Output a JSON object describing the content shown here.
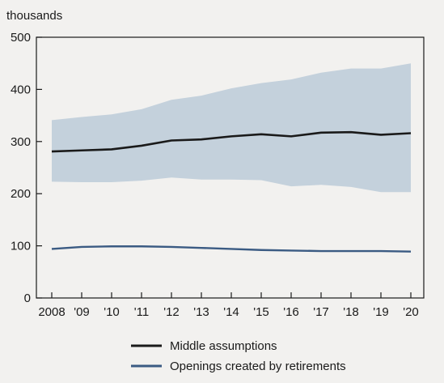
{
  "chart_data": {
    "type": "line",
    "unit_label": "thousands",
    "categories": [
      "2008",
      "'09",
      "'10",
      "'11",
      "'12",
      "'13",
      "'14",
      "'15",
      "'16",
      "'17",
      "'18",
      "'19",
      "'20"
    ],
    "ylim": [
      0,
      500
    ],
    "yticks": [
      "0",
      "100",
      "200",
      "300",
      "400",
      "500"
    ],
    "band": {
      "upper": [
        341,
        347,
        352,
        362,
        380,
        388,
        402,
        412,
        419,
        432,
        440,
        440,
        450
      ],
      "lower": [
        223,
        222,
        222,
        225,
        231,
        227,
        227,
        226,
        214,
        217,
        213,
        203,
        203
      ]
    },
    "series": [
      {
        "name": "Middle assumptions",
        "values": [
          281,
          283,
          285,
          292,
          302,
          304,
          310,
          314,
          310,
          317,
          318,
          313,
          316
        ]
      },
      {
        "name": "Openings created by retirements",
        "values": [
          94,
          98,
          99,
          99,
          98,
          96,
          94,
          92,
          91,
          90,
          90,
          90,
          89
        ]
      }
    ],
    "colors": {
      "band": "#c4d1dc",
      "middle": "#1a1a1a",
      "retirements": "#3b5b83",
      "axis": "#1a1a1a"
    },
    "grid": false,
    "legend_position": "bottom-center"
  }
}
